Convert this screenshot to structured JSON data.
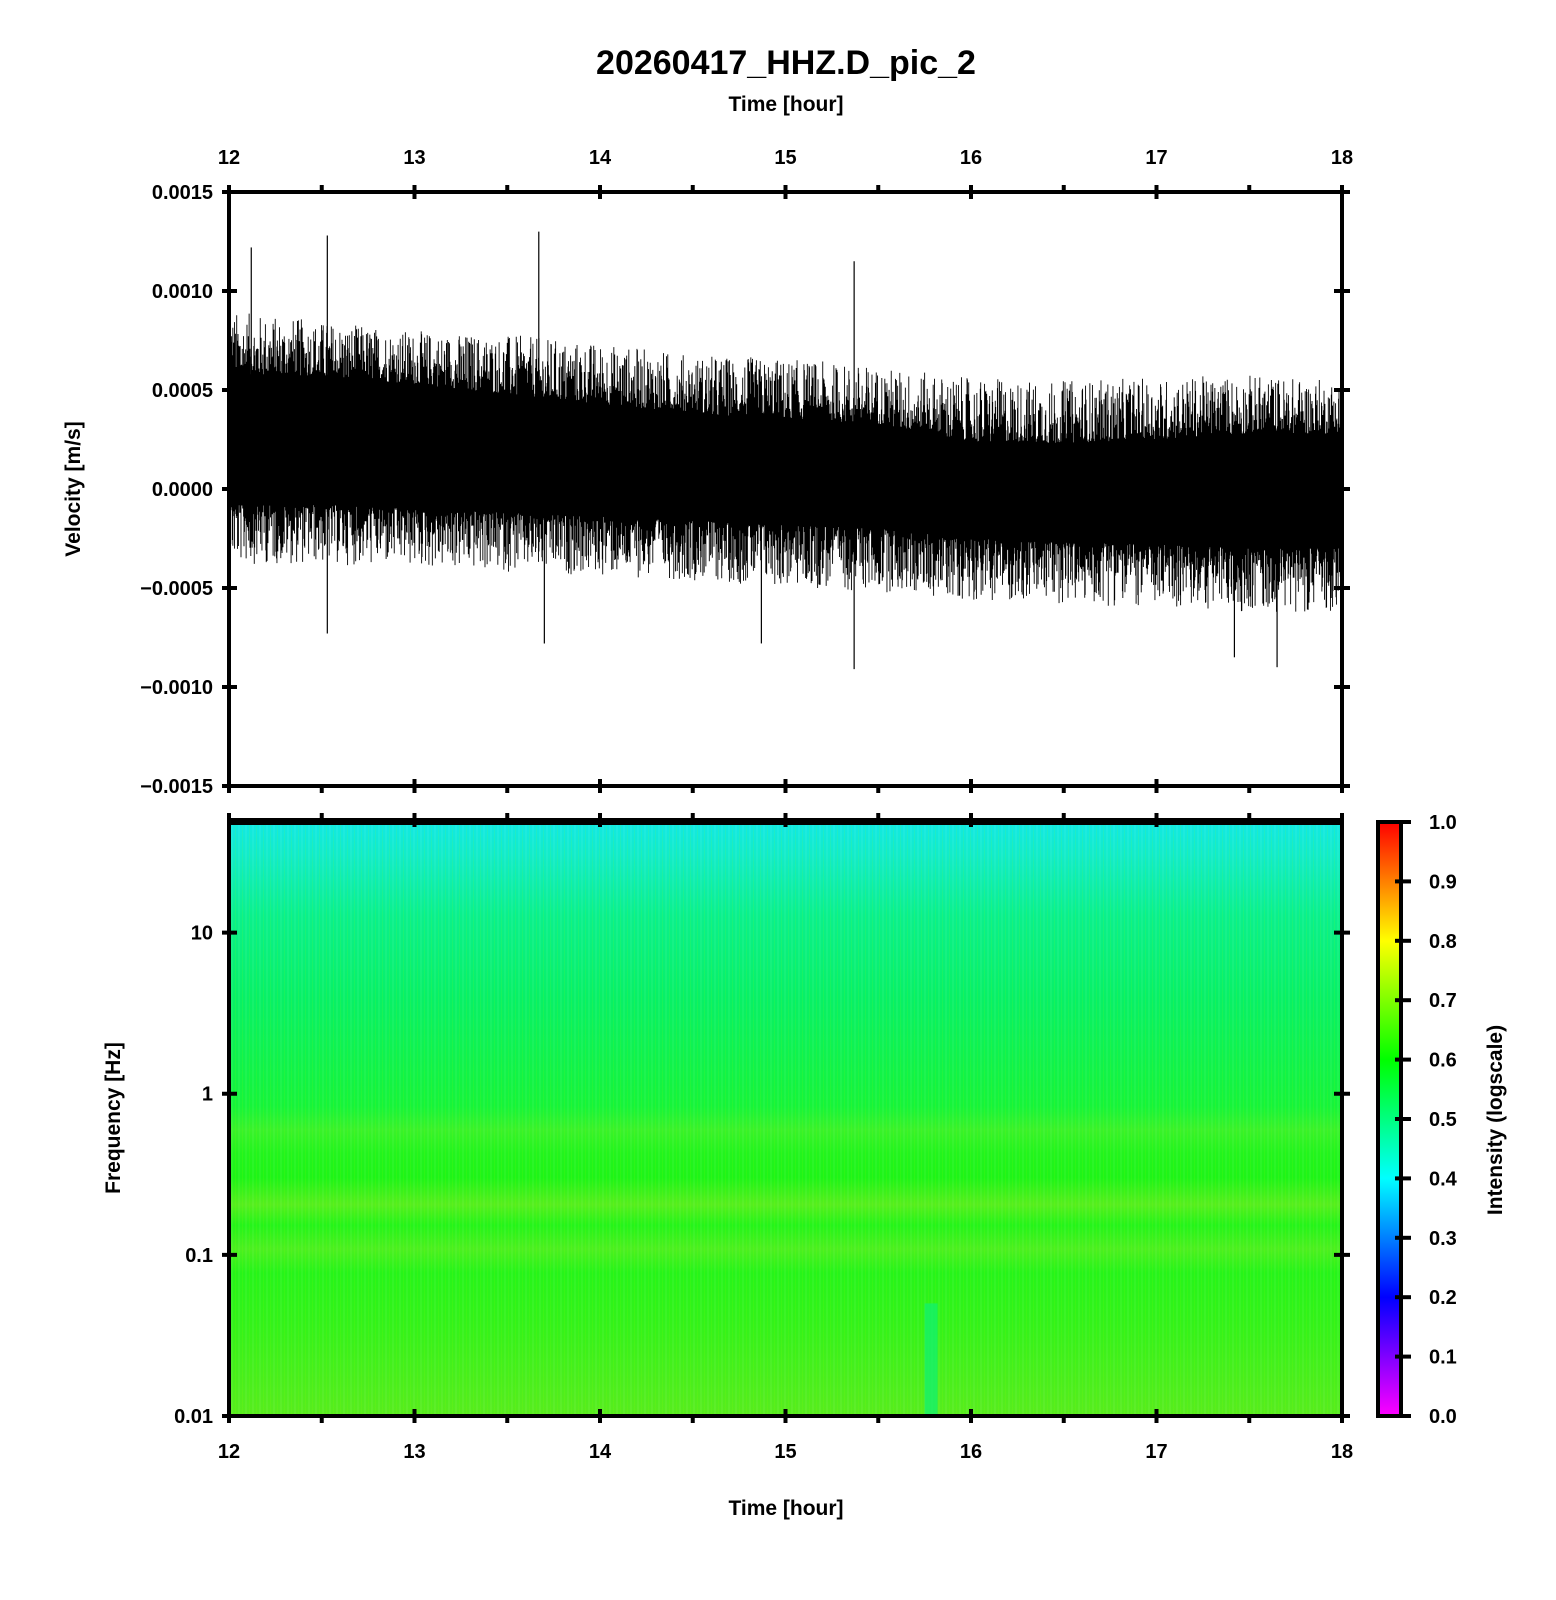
{
  "chart_data": [
    {
      "type": "line",
      "title": "20260417_HHZ.D_pic_2",
      "xlabel": "Time [hour]",
      "ylabel": "Velocity [m/s]",
      "xlim": [
        12,
        18
      ],
      "ylim": [
        -0.0015,
        0.0015
      ],
      "xticks": [
        "12",
        "13",
        "14",
        "15",
        "16",
        "17",
        "18"
      ],
      "yticks": [
        "0.0015",
        "0.0010",
        "0.0005",
        "0.0000",
        "−0.0005",
        "−0.0010",
        "−0.0015"
      ],
      "x_axis_position": "top",
      "grid": false,
      "series": [
        {
          "color": "#000000",
          "envelope": {
            "x": [
              12,
              12.5,
              13,
              13.5,
              14,
              14.5,
              15,
              15.5,
              16,
              16.5,
              17,
              17.5,
              18
            ],
            "upper": [
              0.0009,
              0.00085,
              0.0008,
              0.00078,
              0.00074,
              0.00068,
              0.00066,
              0.00062,
              0.00056,
              0.00055,
              0.00056,
              0.00058,
              0.00055
            ],
            "lower": [
              -0.00038,
              -0.00038,
              -0.0004,
              -0.00042,
              -0.00044,
              -0.00046,
              -0.0005,
              -0.00052,
              -0.00056,
              -0.00058,
              -0.0006,
              -0.00062,
              -0.00062
            ],
            "core_upper": [
              0.00058,
              0.00057,
              0.00053,
              0.00048,
              0.00043,
              0.00038,
              0.00035,
              0.00033,
              0.00024,
              0.00023,
              0.00025,
              0.00028,
              0.00028
            ],
            "core_lower": [
              -8e-05,
              -8e-05,
              -0.0001,
              -0.00012,
              -0.00014,
              -0.00016,
              -0.00018,
              -0.0002,
              -0.00025,
              -0.00027,
              -0.00028,
              -0.0003,
              -0.0003
            ]
          },
          "peaks": [
            {
              "x": 12.12,
              "y": 0.00122
            },
            {
              "x": 12.53,
              "y": 0.00128
            },
            {
              "x": 13.67,
              "y": 0.0013
            },
            {
              "x": 15.37,
              "y": 0.00115
            },
            {
              "x": 12.53,
              "y": -0.00073
            },
            {
              "x": 13.7,
              "y": -0.00078
            },
            {
              "x": 14.87,
              "y": -0.00078
            },
            {
              "x": 15.37,
              "y": -0.00091
            },
            {
              "x": 17.42,
              "y": -0.00085
            },
            {
              "x": 17.65,
              "y": -0.0009
            }
          ]
        }
      ]
    },
    {
      "type": "heatmap",
      "xlabel": "Time [hour]",
      "ylabel": "Frequency [Hz]",
      "xlim": [
        12,
        18
      ],
      "ylim": [
        0.01,
        50
      ],
      "yscale": "log",
      "xticks": [
        "12",
        "13",
        "14",
        "15",
        "16",
        "17",
        "18"
      ],
      "yticks": [
        "10",
        "1",
        "0.1",
        "0.01"
      ],
      "colorbar": {
        "label": "Intensity (logscale)",
        "range": [
          0.0,
          1.0
        ],
        "ticks": [
          "1.0",
          "0.9",
          "0.8",
          "0.7",
          "0.6",
          "0.5",
          "0.4",
          "0.3",
          "0.2",
          "0.1",
          "0.0"
        ],
        "colormap": [
          "#ff00ff",
          "#0000ff",
          "#00ffff",
          "#00ff00",
          "#ffff00",
          "#ff0000"
        ]
      },
      "intensity_profile": {
        "frequency_hz": [
          50,
          30,
          15,
          8,
          3,
          1,
          0.6,
          0.4,
          0.2,
          0.1,
          0.05,
          0.02,
          0.01
        ],
        "intensity": [
          0.42,
          0.47,
          0.52,
          0.55,
          0.57,
          0.58,
          0.6,
          0.63,
          0.63,
          0.6,
          0.62,
          0.64,
          0.65
        ]
      },
      "features": [
        {
          "x_range": [
            15.75,
            15.82
          ],
          "f_range": [
            0.01,
            0.05
          ],
          "intensity": 0.55
        }
      ]
    }
  ]
}
